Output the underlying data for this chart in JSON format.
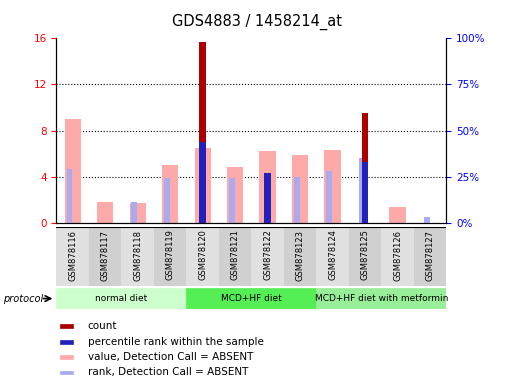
{
  "title": "GDS4883 / 1458214_at",
  "samples": [
    "GSM878116",
    "GSM878117",
    "GSM878118",
    "GSM878119",
    "GSM878120",
    "GSM878121",
    "GSM878122",
    "GSM878123",
    "GSM878124",
    "GSM878125",
    "GSM878126",
    "GSM878127"
  ],
  "count_values": [
    0,
    0,
    0,
    0,
    15.7,
    0,
    0,
    0,
    0,
    9.5,
    0,
    0
  ],
  "percentile_values": [
    0,
    0,
    0,
    0,
    44,
    0,
    27,
    0,
    0,
    33,
    0,
    0
  ],
  "value_absent": [
    9.0,
    1.8,
    1.7,
    5.0,
    6.5,
    4.8,
    6.2,
    5.9,
    6.3,
    0,
    1.4,
    0
  ],
  "rank_absent_pct": [
    29,
    0,
    11,
    24,
    0,
    24,
    0,
    25,
    28,
    35,
    0,
    3
  ],
  "left_ylim": [
    0,
    16
  ],
  "right_ylim": [
    0,
    100
  ],
  "left_yticks": [
    0,
    4,
    8,
    12,
    16
  ],
  "right_yticks": [
    0,
    25,
    50,
    75,
    100
  ],
  "right_yticklabels": [
    "0%",
    "25%",
    "50%",
    "75%",
    "100%"
  ],
  "count_color": "#aa0000",
  "percentile_color": "#2222bb",
  "value_absent_color": "#ffaaaa",
  "rank_absent_color": "#aaaaee",
  "protocol_groups": [
    {
      "label": "normal diet",
      "start": 0,
      "end": 3,
      "color": "#ccffcc"
    },
    {
      "label": "MCD+HF diet",
      "start": 4,
      "end": 7,
      "color": "#55ee55"
    },
    {
      "label": "MCD+HF diet with metformin",
      "start": 8,
      "end": 11,
      "color": "#99ee99"
    }
  ],
  "legend_items": [
    {
      "label": "count",
      "color": "#aa0000"
    },
    {
      "label": "percentile rank within the sample",
      "color": "#2222bb"
    },
    {
      "label": "value, Detection Call = ABSENT",
      "color": "#ffaaaa"
    },
    {
      "label": "rank, Detection Call = ABSENT",
      "color": "#aaaaee"
    }
  ]
}
